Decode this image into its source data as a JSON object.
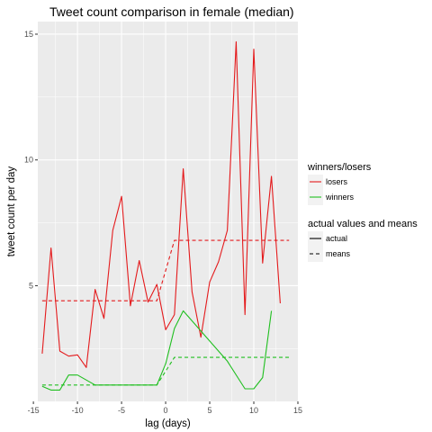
{
  "chart_data": {
    "type": "line",
    "title": "Tweet count comparison in female  (median)",
    "xlabel": "lag (days)",
    "ylabel": "tweet count per day",
    "xlim": [
      -14.5,
      15
    ],
    "ylim": [
      0.4,
      15.5
    ],
    "x_ticks": [
      -15,
      -10,
      -5,
      0,
      5,
      10,
      15
    ],
    "y_ticks": [
      5,
      10,
      15
    ],
    "grid": true,
    "legend": {
      "placement": "right",
      "color_title": "winners/losers",
      "linetype_title": "actual values and means",
      "color_entries": [
        {
          "label": "losers",
          "color": "#e41a1c"
        },
        {
          "label": "winners",
          "color": "#1fbf1f"
        }
      ],
      "linetype_entries": [
        {
          "label": "actual",
          "dash": "solid"
        },
        {
          "label": "means",
          "dash": "dashed"
        }
      ]
    },
    "series": [
      {
        "name": "losers",
        "kind": "actual",
        "color": "#e41a1c",
        "points": [
          [
            -14,
            2.3
          ],
          [
            -13,
            6.5
          ],
          [
            -12,
            2.4
          ],
          [
            -11,
            2.2
          ],
          [
            -10,
            2.25
          ],
          [
            -9,
            1.75
          ],
          [
            -8,
            4.85
          ],
          [
            -7,
            3.7
          ],
          [
            -6,
            7.2
          ],
          [
            -5,
            8.55
          ],
          [
            -4,
            4.2
          ],
          [
            -3,
            6
          ],
          [
            -2,
            4.35
          ],
          [
            -1,
            5.05
          ],
          [
            0,
            3.25
          ],
          [
            1,
            3.85
          ],
          [
            2,
            9.65
          ],
          [
            3,
            4.75
          ],
          [
            4,
            2.95
          ],
          [
            5,
            5.15
          ],
          [
            6,
            5.95
          ],
          [
            7,
            7.2
          ],
          [
            8,
            14.7
          ],
          [
            9,
            3.85
          ],
          [
            10,
            14.4
          ],
          [
            11,
            5.9
          ],
          [
            12,
            9.35
          ],
          [
            13,
            4.3
          ]
        ]
      },
      {
        "name": "losers",
        "kind": "means",
        "color": "#e41a1c",
        "points": [
          [
            -14,
            4.4
          ],
          [
            -1,
            4.4
          ],
          [
            1,
            6.8
          ],
          [
            14,
            6.8
          ]
        ]
      },
      {
        "name": "winners",
        "kind": "actual",
        "color": "#1fbf1f",
        "points": [
          [
            -14,
            1
          ],
          [
            -13,
            0.85
          ],
          [
            -12,
            0.85
          ],
          [
            -11,
            1.45
          ],
          [
            -10,
            1.45
          ],
          [
            -8,
            1.05
          ],
          [
            -7,
            1.05
          ],
          [
            -1,
            1.05
          ],
          [
            0,
            1.9
          ],
          [
            1,
            3.3
          ],
          [
            2,
            4
          ],
          [
            7,
            2
          ],
          [
            9,
            0.9
          ],
          [
            10,
            0.9
          ],
          [
            11,
            1.35
          ],
          [
            12,
            4
          ]
        ]
      },
      {
        "name": "winners",
        "kind": "means",
        "color": "#1fbf1f",
        "points": [
          [
            -14,
            1.05
          ],
          [
            -1,
            1.05
          ],
          [
            1,
            2.15
          ],
          [
            14,
            2.15
          ]
        ]
      }
    ]
  }
}
